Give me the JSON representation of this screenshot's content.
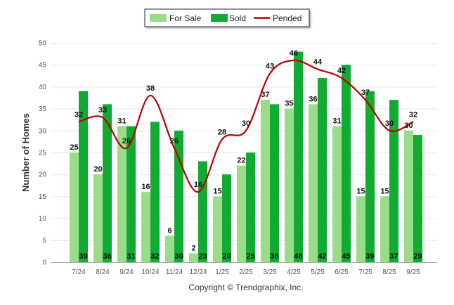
{
  "chart_data": {
    "type": "bar",
    "categories": [
      "7/24",
      "8/24",
      "9/24",
      "10/24",
      "11/24",
      "12/24",
      "1/25",
      "2/25",
      "3/25",
      "4/25",
      "5/25",
      "6/25",
      "7/25",
      "8/25",
      "9/25"
    ],
    "series": [
      {
        "name": "For Sale",
        "type": "bar",
        "color": "#99dd88",
        "values": [
          25,
          20,
          31,
          16,
          6,
          2,
          15,
          22,
          37,
          35,
          36,
          31,
          15,
          15,
          30
        ]
      },
      {
        "name": "Sold",
        "type": "bar",
        "color": "#11aa33",
        "values": [
          39,
          36,
          31,
          32,
          30,
          23,
          20,
          25,
          36,
          48,
          42,
          45,
          39,
          37,
          29
        ]
      },
      {
        "name": "Pended",
        "type": "line",
        "color": "#bb0000",
        "values": [
          32,
          33,
          26,
          38,
          26,
          16,
          28,
          30,
          43,
          46,
          44,
          42,
          37,
          30,
          32
        ]
      }
    ],
    "ylabel": "Number of Homes",
    "ylim": [
      0,
      50
    ],
    "yticks": [
      0,
      5,
      10,
      15,
      20,
      25,
      30,
      35,
      40,
      45,
      50
    ],
    "grid": true,
    "legend_position": "top-center",
    "credit": "Copyright © Trendgraphix, Inc."
  }
}
